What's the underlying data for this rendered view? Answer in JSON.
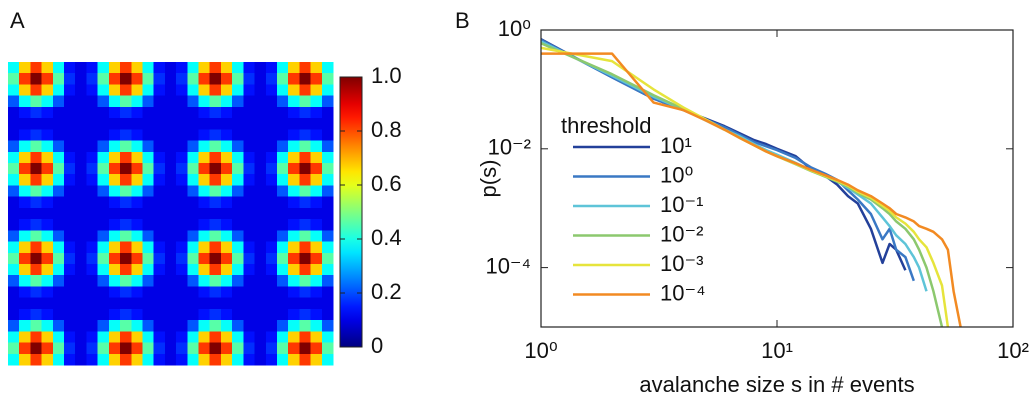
{
  "chart_data": [
    {
      "type": "heatmap",
      "panel_label": "A",
      "zlim": [
        0,
        1
      ],
      "colorbar_ticks": [
        0,
        0.2,
        0.4,
        0.6,
        0.8,
        {
          "value": 1,
          "label": "1.0"
        }
      ],
      "z": [
        [
          0.38,
          0.67,
          0.82,
          0.67,
          0.38,
          0.14,
          0.1,
          0.14,
          0.38,
          0.67,
          0.82,
          0.67,
          0.38,
          0.14,
          0.1,
          0.14,
          0.38,
          0.67,
          0.82,
          0.67,
          0.38,
          0.14,
          0.1,
          0.14,
          0.38,
          0.67,
          0.82,
          0.67,
          0.38
        ],
        [
          0.46,
          0.82,
          1,
          0.82,
          0.46,
          0.17,
          0.1,
          0.17,
          0.46,
          0.82,
          1,
          0.82,
          0.46,
          0.17,
          0.1,
          0.17,
          0.46,
          0.82,
          1,
          0.82,
          0.46,
          0.17,
          0.1,
          0.17,
          0.46,
          0.82,
          1,
          0.82,
          0.46
        ],
        [
          0.38,
          0.67,
          0.82,
          0.67,
          0.38,
          0.14,
          0.1,
          0.14,
          0.38,
          0.67,
          0.82,
          0.67,
          0.38,
          0.14,
          0.1,
          0.14,
          0.38,
          0.67,
          0.82,
          0.67,
          0.38,
          0.14,
          0.1,
          0.14,
          0.38,
          0.67,
          0.82,
          0.67,
          0.38
        ],
        [
          0.21,
          0.38,
          0.46,
          0.38,
          0.21,
          0.1,
          0.1,
          0.1,
          0.21,
          0.38,
          0.46,
          0.38,
          0.21,
          0.1,
          0.1,
          0.1,
          0.21,
          0.38,
          0.46,
          0.38,
          0.21,
          0.1,
          0.1,
          0.1,
          0.21,
          0.38,
          0.46,
          0.38,
          0.21
        ],
        [
          0.1,
          0.14,
          0.17,
          0.14,
          0.1,
          0.1,
          0.1,
          0.1,
          0.1,
          0.14,
          0.17,
          0.14,
          0.1,
          0.1,
          0.1,
          0.1,
          0.1,
          0.14,
          0.17,
          0.14,
          0.1,
          0.1,
          0.1,
          0.1,
          0.1,
          0.14,
          0.17,
          0.14,
          0.1
        ],
        [
          0.1,
          0.1,
          0.1,
          0.1,
          0.1,
          0.1,
          0.1,
          0.1,
          0.1,
          0.1,
          0.1,
          0.1,
          0.1,
          0.1,
          0.1,
          0.1,
          0.1,
          0.1,
          0.1,
          0.1,
          0.1,
          0.1,
          0.1,
          0.1,
          0.1,
          0.1,
          0.1,
          0.1,
          0.1
        ],
        [
          0.1,
          0.14,
          0.17,
          0.14,
          0.1,
          0.1,
          0.1,
          0.1,
          0.1,
          0.14,
          0.17,
          0.14,
          0.1,
          0.1,
          0.1,
          0.1,
          0.1,
          0.14,
          0.17,
          0.14,
          0.1,
          0.1,
          0.1,
          0.1,
          0.1,
          0.14,
          0.17,
          0.14,
          0.1
        ],
        [
          0.21,
          0.38,
          0.46,
          0.38,
          0.21,
          0.1,
          0.1,
          0.1,
          0.21,
          0.38,
          0.46,
          0.38,
          0.21,
          0.1,
          0.1,
          0.1,
          0.21,
          0.38,
          0.46,
          0.38,
          0.21,
          0.1,
          0.1,
          0.1,
          0.21,
          0.38,
          0.46,
          0.38,
          0.21
        ],
        [
          0.38,
          0.67,
          0.82,
          0.67,
          0.38,
          0.14,
          0.1,
          0.14,
          0.38,
          0.67,
          0.82,
          0.67,
          0.38,
          0.14,
          0.1,
          0.14,
          0.38,
          0.67,
          0.82,
          0.67,
          0.38,
          0.14,
          0.1,
          0.14,
          0.38,
          0.67,
          0.82,
          0.67,
          0.38
        ],
        [
          0.46,
          0.82,
          1,
          0.82,
          0.46,
          0.17,
          0.1,
          0.17,
          0.46,
          0.82,
          1,
          0.82,
          0.46,
          0.17,
          0.1,
          0.17,
          0.46,
          0.82,
          1,
          0.82,
          0.46,
          0.17,
          0.1,
          0.17,
          0.46,
          0.82,
          1,
          0.82,
          0.46
        ],
        [
          0.38,
          0.67,
          0.82,
          0.67,
          0.38,
          0.14,
          0.1,
          0.14,
          0.38,
          0.67,
          0.82,
          0.67,
          0.38,
          0.14,
          0.1,
          0.14,
          0.38,
          0.67,
          0.82,
          0.67,
          0.38,
          0.14,
          0.1,
          0.14,
          0.38,
          0.67,
          0.82,
          0.67,
          0.38
        ],
        [
          0.21,
          0.38,
          0.46,
          0.38,
          0.21,
          0.1,
          0.1,
          0.1,
          0.21,
          0.38,
          0.46,
          0.38,
          0.21,
          0.1,
          0.1,
          0.1,
          0.21,
          0.38,
          0.46,
          0.38,
          0.21,
          0.1,
          0.1,
          0.1,
          0.21,
          0.38,
          0.46,
          0.38,
          0.21
        ],
        [
          0.1,
          0.14,
          0.17,
          0.14,
          0.1,
          0.1,
          0.1,
          0.1,
          0.1,
          0.14,
          0.17,
          0.14,
          0.1,
          0.1,
          0.1,
          0.1,
          0.1,
          0.14,
          0.17,
          0.14,
          0.1,
          0.1,
          0.1,
          0.1,
          0.1,
          0.14,
          0.17,
          0.14,
          0.1
        ],
        [
          0.1,
          0.1,
          0.1,
          0.1,
          0.1,
          0.1,
          0.1,
          0.1,
          0.1,
          0.1,
          0.1,
          0.1,
          0.1,
          0.1,
          0.1,
          0.1,
          0.1,
          0.1,
          0.1,
          0.1,
          0.1,
          0.1,
          0.1,
          0.1,
          0.1,
          0.1,
          0.1,
          0.1,
          0.1
        ],
        [
          0.1,
          0.14,
          0.17,
          0.14,
          0.1,
          0.1,
          0.1,
          0.1,
          0.1,
          0.14,
          0.17,
          0.14,
          0.1,
          0.1,
          0.1,
          0.1,
          0.1,
          0.14,
          0.17,
          0.14,
          0.1,
          0.1,
          0.1,
          0.1,
          0.1,
          0.14,
          0.17,
          0.14,
          0.1
        ],
        [
          0.21,
          0.38,
          0.46,
          0.38,
          0.21,
          0.1,
          0.1,
          0.1,
          0.21,
          0.38,
          0.46,
          0.38,
          0.21,
          0.1,
          0.1,
          0.1,
          0.21,
          0.38,
          0.46,
          0.38,
          0.21,
          0.1,
          0.1,
          0.1,
          0.21,
          0.38,
          0.46,
          0.38,
          0.21
        ],
        [
          0.38,
          0.67,
          0.82,
          0.67,
          0.38,
          0.14,
          0.1,
          0.14,
          0.38,
          0.67,
          0.82,
          0.67,
          0.38,
          0.14,
          0.1,
          0.14,
          0.38,
          0.67,
          0.82,
          0.67,
          0.38,
          0.14,
          0.1,
          0.14,
          0.38,
          0.67,
          0.82,
          0.67,
          0.38
        ],
        [
          0.46,
          0.82,
          1,
          0.82,
          0.46,
          0.17,
          0.1,
          0.17,
          0.46,
          0.82,
          1,
          0.82,
          0.46,
          0.17,
          0.1,
          0.17,
          0.46,
          0.82,
          1,
          0.82,
          0.46,
          0.17,
          0.1,
          0.17,
          0.46,
          0.82,
          1,
          0.82,
          0.46
        ],
        [
          0.38,
          0.67,
          0.82,
          0.67,
          0.38,
          0.14,
          0.1,
          0.14,
          0.38,
          0.67,
          0.82,
          0.67,
          0.38,
          0.14,
          0.1,
          0.14,
          0.38,
          0.67,
          0.82,
          0.67,
          0.38,
          0.14,
          0.1,
          0.14,
          0.38,
          0.67,
          0.82,
          0.67,
          0.38
        ],
        [
          0.21,
          0.38,
          0.46,
          0.38,
          0.21,
          0.1,
          0.1,
          0.1,
          0.21,
          0.38,
          0.46,
          0.38,
          0.21,
          0.1,
          0.1,
          0.1,
          0.21,
          0.38,
          0.46,
          0.38,
          0.21,
          0.1,
          0.1,
          0.1,
          0.21,
          0.38,
          0.46,
          0.38,
          0.21
        ],
        [
          0.1,
          0.14,
          0.17,
          0.14,
          0.1,
          0.1,
          0.1,
          0.1,
          0.1,
          0.14,
          0.17,
          0.14,
          0.1,
          0.1,
          0.1,
          0.1,
          0.1,
          0.14,
          0.17,
          0.14,
          0.1,
          0.1,
          0.1,
          0.1,
          0.1,
          0.14,
          0.17,
          0.14,
          0.1
        ],
        [
          0.1,
          0.1,
          0.1,
          0.1,
          0.1,
          0.1,
          0.1,
          0.1,
          0.1,
          0.1,
          0.1,
          0.1,
          0.1,
          0.1,
          0.1,
          0.1,
          0.1,
          0.1,
          0.1,
          0.1,
          0.1,
          0.1,
          0.1,
          0.1,
          0.1,
          0.1,
          0.1,
          0.1,
          0.1
        ],
        [
          0.1,
          0.14,
          0.17,
          0.14,
          0.1,
          0.1,
          0.1,
          0.1,
          0.1,
          0.14,
          0.17,
          0.14,
          0.1,
          0.1,
          0.1,
          0.1,
          0.1,
          0.14,
          0.17,
          0.14,
          0.1,
          0.1,
          0.1,
          0.1,
          0.1,
          0.14,
          0.17,
          0.14,
          0.1
        ],
        [
          0.21,
          0.38,
          0.46,
          0.38,
          0.21,
          0.1,
          0.1,
          0.1,
          0.21,
          0.38,
          0.46,
          0.38,
          0.21,
          0.1,
          0.1,
          0.1,
          0.21,
          0.38,
          0.46,
          0.38,
          0.21,
          0.1,
          0.1,
          0.1,
          0.21,
          0.38,
          0.46,
          0.38,
          0.21
        ],
        [
          0.38,
          0.67,
          0.82,
          0.67,
          0.38,
          0.14,
          0.1,
          0.14,
          0.38,
          0.67,
          0.82,
          0.67,
          0.38,
          0.14,
          0.1,
          0.14,
          0.38,
          0.67,
          0.82,
          0.67,
          0.38,
          0.14,
          0.1,
          0.14,
          0.38,
          0.67,
          0.82,
          0.67,
          0.38
        ],
        [
          0.46,
          0.82,
          1,
          0.82,
          0.46,
          0.17,
          0.1,
          0.17,
          0.46,
          0.82,
          1,
          0.82,
          0.46,
          0.17,
          0.1,
          0.17,
          0.46,
          0.82,
          1,
          0.82,
          0.46,
          0.17,
          0.1,
          0.17,
          0.46,
          0.82,
          1,
          0.82,
          0.46
        ],
        [
          0.38,
          0.67,
          0.82,
          0.67,
          0.38,
          0.14,
          0.1,
          0.14,
          0.38,
          0.67,
          0.82,
          0.67,
          0.38,
          0.14,
          0.1,
          0.14,
          0.38,
          0.67,
          0.82,
          0.67,
          0.38,
          0.14,
          0.1,
          0.14,
          0.38,
          0.67,
          0.82,
          0.67,
          0.38
        ]
      ]
    },
    {
      "type": "line",
      "panel_label": "B",
      "xlabel": "avalanche size s in # events",
      "ylabel": "p(s)",
      "xscale": "log",
      "yscale": "log",
      "xlim": [
        1,
        100
      ],
      "ylim": [
        1e-05,
        1
      ],
      "xticks": [
        {
          "value": 1,
          "label": "10⁰"
        },
        {
          "value": 10,
          "label": "10¹"
        },
        {
          "value": 100,
          "label": "10²"
        }
      ],
      "yticks": [
        {
          "value": 0.0001,
          "label": "10⁻⁴"
        },
        {
          "value": 0.01,
          "label": "10⁻²"
        },
        {
          "value": 1,
          "label": "10⁰"
        }
      ],
      "legend": "left",
      "legend_title": "threshold",
      "x": [
        1,
        2,
        3,
        4,
        5,
        6,
        7,
        8,
        9,
        10,
        12,
        14,
        16,
        18,
        20,
        22,
        25,
        28,
        30,
        32,
        35,
        38,
        40,
        43,
        46,
        50,
        53,
        56,
        60
      ],
      "series": [
        {
          "name": "10¹",
          "color": "#23409a",
          "values": [
            0.7,
            0.16,
            0.07,
            0.045,
            0.032,
            0.024,
            0.018,
            0.014,
            0.012,
            0.01,
            0.0075,
            0.0045,
            0.0035,
            0.0025,
            0.0016,
            0.0012,
            0.00045,
            0.00012,
            0.00025,
            0.0002,
            9e-05,
            null,
            null,
            null,
            null,
            null,
            null,
            null,
            null
          ]
        },
        {
          "name": "10⁰",
          "color": "#3a78c4",
          "values": [
            0.68,
            0.16,
            0.07,
            0.045,
            0.031,
            0.023,
            0.017,
            0.013,
            0.011,
            0.0095,
            0.007,
            0.0048,
            0.0038,
            0.003,
            0.002,
            0.0014,
            0.0008,
            0.0003,
            0.00045,
            0.0002,
            0.00015,
            6e-05,
            null,
            null,
            null,
            null,
            null,
            null,
            null
          ]
        },
        {
          "name": "10⁻¹",
          "color": "#5ec4d8",
          "values": [
            0.64,
            0.17,
            0.075,
            0.046,
            0.03,
            0.021,
            0.016,
            0.012,
            0.0095,
            0.008,
            0.0058,
            0.0043,
            0.0034,
            0.0028,
            0.0022,
            0.0017,
            0.0012,
            0.0007,
            0.0005,
            0.00035,
            0.00025,
            0.00015,
            0.0001,
            4e-05,
            null,
            null,
            null,
            null,
            null
          ]
        },
        {
          "name": "10⁻²",
          "color": "#8cc86e",
          "values": [
            0.6,
            0.18,
            0.08,
            0.047,
            0.03,
            0.021,
            0.015,
            0.0115,
            0.009,
            0.0075,
            0.0055,
            0.0042,
            0.0034,
            0.0028,
            0.0023,
            0.0018,
            0.0014,
            0.001,
            0.0008,
            0.0006,
            0.00045,
            0.0003,
            0.0002,
            0.0001,
            4e-05,
            1e-05,
            null,
            null,
            null
          ]
        },
        {
          "name": "10⁻³",
          "color": "#e6e43c",
          "values": [
            0.5,
            0.3,
            0.1,
            0.05,
            0.031,
            0.021,
            0.015,
            0.0115,
            0.009,
            0.0075,
            0.0056,
            0.0043,
            0.0035,
            0.0029,
            0.0024,
            0.0019,
            0.0015,
            0.0011,
            0.0009,
            0.0007,
            0.00055,
            0.0004,
            0.0003,
            0.00022,
            0.00012,
            5e-05,
            1e-05,
            null,
            null
          ]
        },
        {
          "name": "10⁻⁴",
          "color": "#f28a22",
          "values": [
            0.4,
            0.4,
            0.06,
            0.045,
            0.03,
            0.021,
            0.015,
            0.0115,
            0.009,
            0.0075,
            0.0057,
            0.0044,
            0.0036,
            0.003,
            0.0025,
            0.002,
            0.0016,
            0.0012,
            0.001,
            0.0008,
            0.0007,
            0.0006,
            0.0005,
            0.00045,
            0.0004,
            0.0003,
            0.0002,
            4e-05,
            1e-05
          ]
        }
      ]
    }
  ]
}
